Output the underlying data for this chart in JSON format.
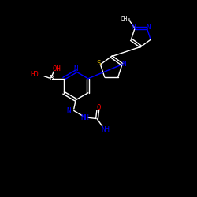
{
  "bg_color": "#000000",
  "bond_color": "#ffffff",
  "N_color": "#0000ff",
  "O_color": "#ff0000",
  "S_color": "#ccaa00",
  "B_color": "#ffffff",
  "lw": 1.0,
  "fs": 6.5,
  "fs_small": 5.5,
  "xlim": [
    0,
    10
  ],
  "ylim": [
    0,
    10
  ]
}
